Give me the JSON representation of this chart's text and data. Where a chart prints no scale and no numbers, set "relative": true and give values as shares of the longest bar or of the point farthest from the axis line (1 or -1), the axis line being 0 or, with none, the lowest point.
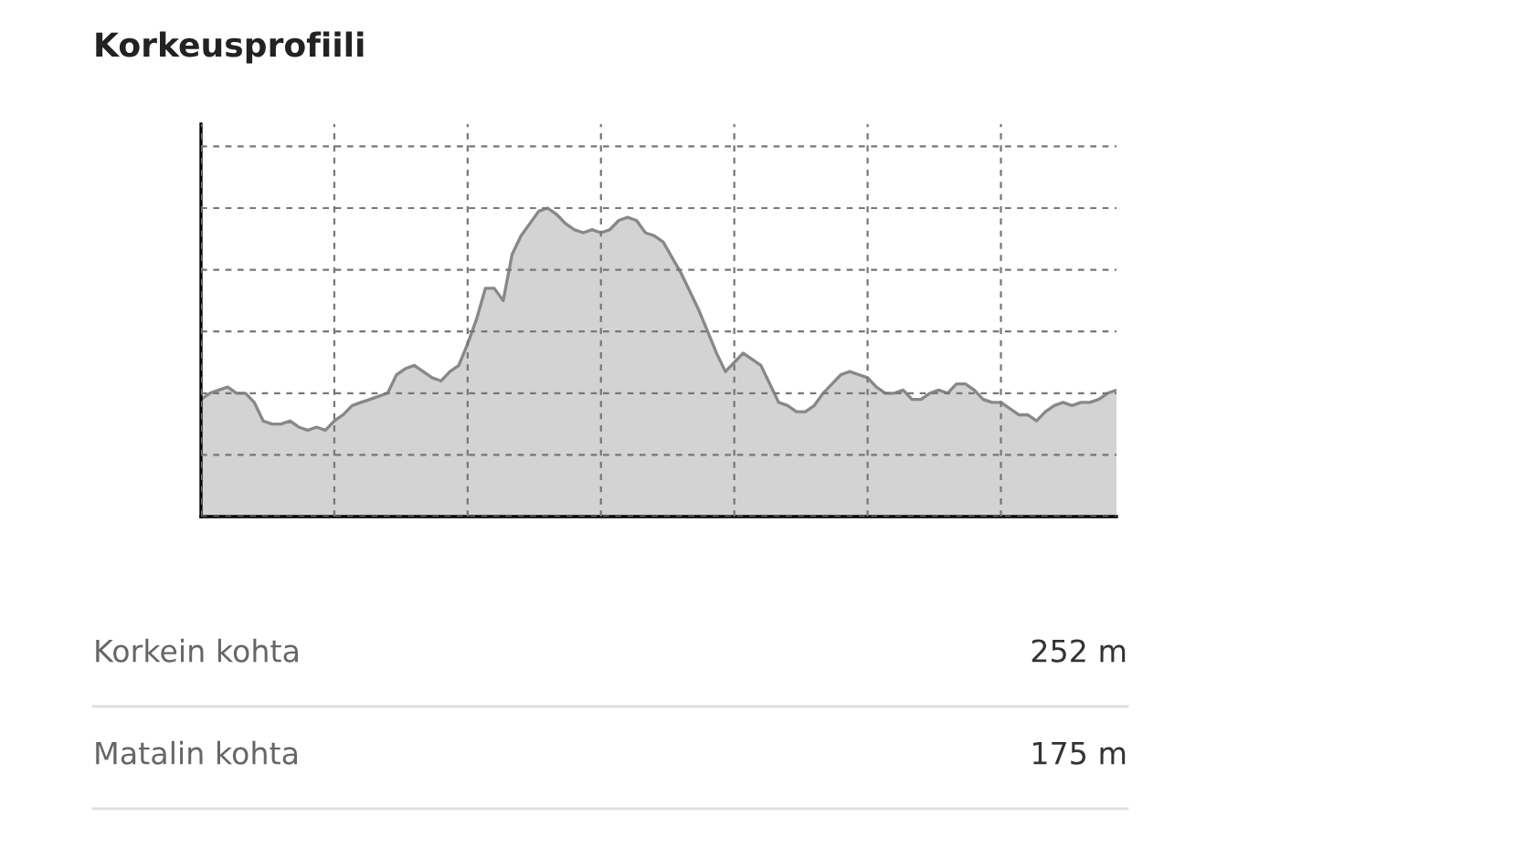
{
  "chart_data": {
    "type": "area",
    "title": "Korkeusprofiili",
    "relative": true,
    "grid": true,
    "color": "#d3d3d3",
    "categories": [
      null,
      null,
      null,
      null,
      null,
      null,
      null,
      null,
      null,
      null,
      null,
      null,
      null,
      null,
      null,
      null,
      null,
      null,
      null,
      null,
      null,
      null,
      null,
      null,
      null,
      null,
      null,
      null,
      null,
      null,
      null,
      null,
      null,
      null,
      null,
      null,
      null,
      null,
      null,
      null,
      null,
      null,
      null,
      null,
      null,
      null,
      null,
      null,
      null,
      null,
      null,
      null,
      null,
      null,
      null,
      null,
      null,
      null,
      null,
      null,
      null,
      null,
      null,
      null,
      null,
      null,
      null,
      null,
      null,
      null,
      null,
      null,
      null,
      null,
      null,
      null,
      null,
      null,
      null,
      null,
      null,
      null,
      null,
      null,
      null,
      null,
      null,
      null,
      null,
      null,
      null,
      null,
      null,
      null,
      null,
      null,
      null,
      null,
      null,
      null,
      null,
      null,
      null,
      null
    ],
    "values": [
      0.38,
      0.4,
      0.41,
      0.42,
      0.4,
      0.4,
      0.37,
      0.31,
      0.3,
      0.3,
      0.31,
      0.29,
      0.28,
      0.29,
      0.28,
      0.31,
      0.33,
      0.36,
      0.37,
      0.38,
      0.39,
      0.4,
      0.46,
      0.48,
      0.49,
      0.47,
      0.45,
      0.44,
      0.47,
      0.49,
      0.56,
      0.64,
      0.74,
      0.74,
      0.7,
      0.85,
      0.91,
      0.95,
      0.99,
      1,
      0.98,
      0.95,
      0.93,
      0.92,
      0.93,
      0.92,
      0.93,
      0.96,
      0.97,
      0.96,
      0.92,
      0.91,
      0.89,
      0.84,
      0.79,
      0.73,
      0.67,
      0.6,
      0.53,
      0.47,
      0.5,
      0.53,
      0.51,
      0.49,
      0.43,
      0.37,
      0.36,
      0.34,
      0.34,
      0.36,
      0.4,
      0.43,
      0.46,
      0.47,
      0.46,
      0.45,
      0.42,
      0.4,
      0.4,
      0.41,
      0.38,
      0.38,
      0.4,
      0.41,
      0.4,
      0.43,
      0.43,
      0.41,
      0.38,
      0.37,
      0.37,
      0.35,
      0.33,
      0.33,
      0.31,
      0.34,
      0.36,
      0.37,
      0.36,
      0.37,
      0.37,
      0.38,
      0.4,
      0.41
    ],
    "annotations": [
      "Korkein kohta",
      "252 m",
      "Matalin kohta",
      "175 m"
    ]
  }
}
